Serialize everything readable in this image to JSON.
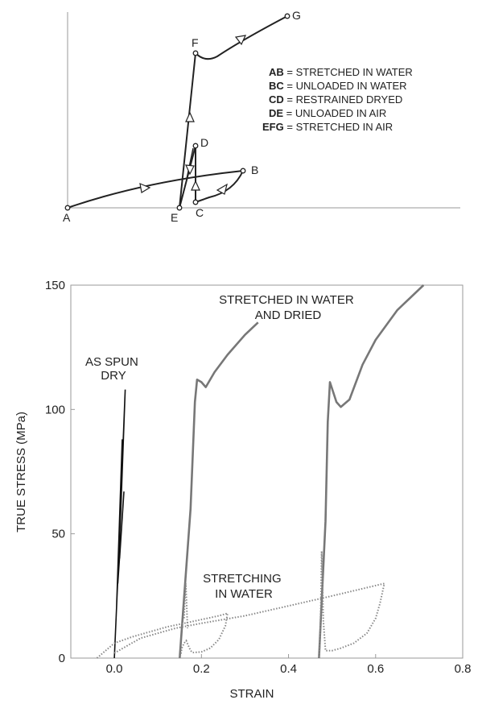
{
  "schematic": {
    "points": [
      "A",
      "B",
      "C",
      "D",
      "E",
      "F",
      "G"
    ],
    "legend": [
      {
        "key": "AB",
        "sep": " = ",
        "text": "STRETCHED IN WATER"
      },
      {
        "key": "BC",
        "sep": " = ",
        "text": "UNLOADED IN WATER"
      },
      {
        "key": "CD",
        "sep": " = ",
        "text": "RESTRAINED DRYED"
      },
      {
        "key": "DE",
        "sep": " = ",
        "text": "UNLOADED IN AIR"
      },
      {
        "key": "EFG",
        "sep": " = ",
        "text": "STRETCHED IN AIR"
      }
    ]
  },
  "chart_data": {
    "type": "line",
    "xlabel": "STRAIN",
    "ylabel": "TRUE STRESS (MPa)",
    "xlim": [
      -0.1,
      0.8
    ],
    "ylim": [
      0,
      150
    ],
    "xticks": [
      0,
      0.2,
      0.4,
      0.6,
      0.8
    ],
    "xtick_labels": [
      "0.0",
      "0.2",
      "0.4",
      "0.6",
      "0.8"
    ],
    "yticks": [
      0,
      50,
      100,
      150
    ],
    "ytick_labels": [
      "0",
      "50",
      "100",
      "150"
    ],
    "annotations": [
      {
        "lines": [
          "AS SPUN",
          "DRY"
        ]
      },
      {
        "lines": [
          "STRETCHED IN WATER",
          "AND DRIED"
        ]
      },
      {
        "lines": [
          "STRETCHING",
          "IN WATER"
        ]
      }
    ],
    "series": [
      {
        "style": "solid-dark",
        "points": [
          [
            0.0,
            0
          ],
          [
            0.015,
            60
          ],
          [
            0.025,
            108
          ],
          [
            0.005,
            20
          ],
          [
            0.018,
            88
          ],
          [
            0.008,
            30
          ],
          [
            0.022,
            67
          ],
          [
            0.012,
            40
          ]
        ]
      },
      {
        "style": "solid-gray",
        "points": [
          [
            0.15,
            0
          ],
          [
            0.175,
            60
          ],
          [
            0.185,
            103
          ],
          [
            0.19,
            112
          ],
          [
            0.2,
            111
          ],
          [
            0.21,
            109
          ],
          [
            0.23,
            115
          ],
          [
            0.26,
            122
          ],
          [
            0.3,
            130
          ],
          [
            0.33,
            135
          ]
        ]
      },
      {
        "style": "solid-gray",
        "points": [
          [
            0.47,
            0
          ],
          [
            0.485,
            55
          ],
          [
            0.49,
            95
          ],
          [
            0.495,
            111
          ],
          [
            0.51,
            103
          ],
          [
            0.52,
            101
          ],
          [
            0.54,
            104
          ],
          [
            0.57,
            118
          ],
          [
            0.6,
            128
          ],
          [
            0.65,
            140
          ],
          [
            0.71,
            150
          ]
        ]
      },
      {
        "style": "dotted",
        "points": [
          [
            -0.04,
            0
          ],
          [
            -0.02,
            3
          ],
          [
            0.0,
            6
          ],
          [
            0.04,
            8.5
          ],
          [
            0.08,
            10.5
          ],
          [
            0.12,
            12.5
          ],
          [
            0.16,
            14
          ],
          [
            0.2,
            15.5
          ],
          [
            0.24,
            17
          ],
          [
            0.26,
            18
          ],
          [
            0.255,
            13
          ],
          [
            0.24,
            7.5
          ],
          [
            0.22,
            4
          ],
          [
            0.2,
            2.5
          ],
          [
            0.18,
            2.2
          ],
          [
            0.175,
            3
          ],
          [
            0.17,
            5
          ],
          [
            0.165,
            7
          ],
          [
            0.16,
            6
          ],
          [
            0.155,
            4
          ],
          [
            0.153,
            2
          ],
          [
            0.15,
            0
          ]
        ]
      },
      {
        "style": "dotted",
        "points": [
          [
            0.0,
            2
          ],
          [
            0.06,
            8
          ],
          [
            0.14,
            12
          ],
          [
            0.2,
            14
          ],
          [
            0.3,
            17
          ],
          [
            0.4,
            21
          ],
          [
            0.5,
            25
          ],
          [
            0.56,
            27.5
          ],
          [
            0.62,
            30
          ],
          [
            0.61,
            22
          ],
          [
            0.6,
            16
          ],
          [
            0.58,
            10
          ],
          [
            0.55,
            6
          ],
          [
            0.52,
            4
          ],
          [
            0.5,
            3
          ],
          [
            0.485,
            3
          ],
          [
            0.48,
            15
          ],
          [
            0.478,
            30
          ],
          [
            0.476,
            43
          ],
          [
            0.474,
            20
          ],
          [
            0.472,
            5
          ],
          [
            0.47,
            0
          ]
        ]
      },
      {
        "style": "dotted",
        "points": [
          [
            0.16,
            16
          ],
          [
            0.162,
            24
          ],
          [
            0.164,
            30
          ],
          [
            0.166,
            22
          ],
          [
            0.168,
            12
          ]
        ]
      }
    ]
  }
}
